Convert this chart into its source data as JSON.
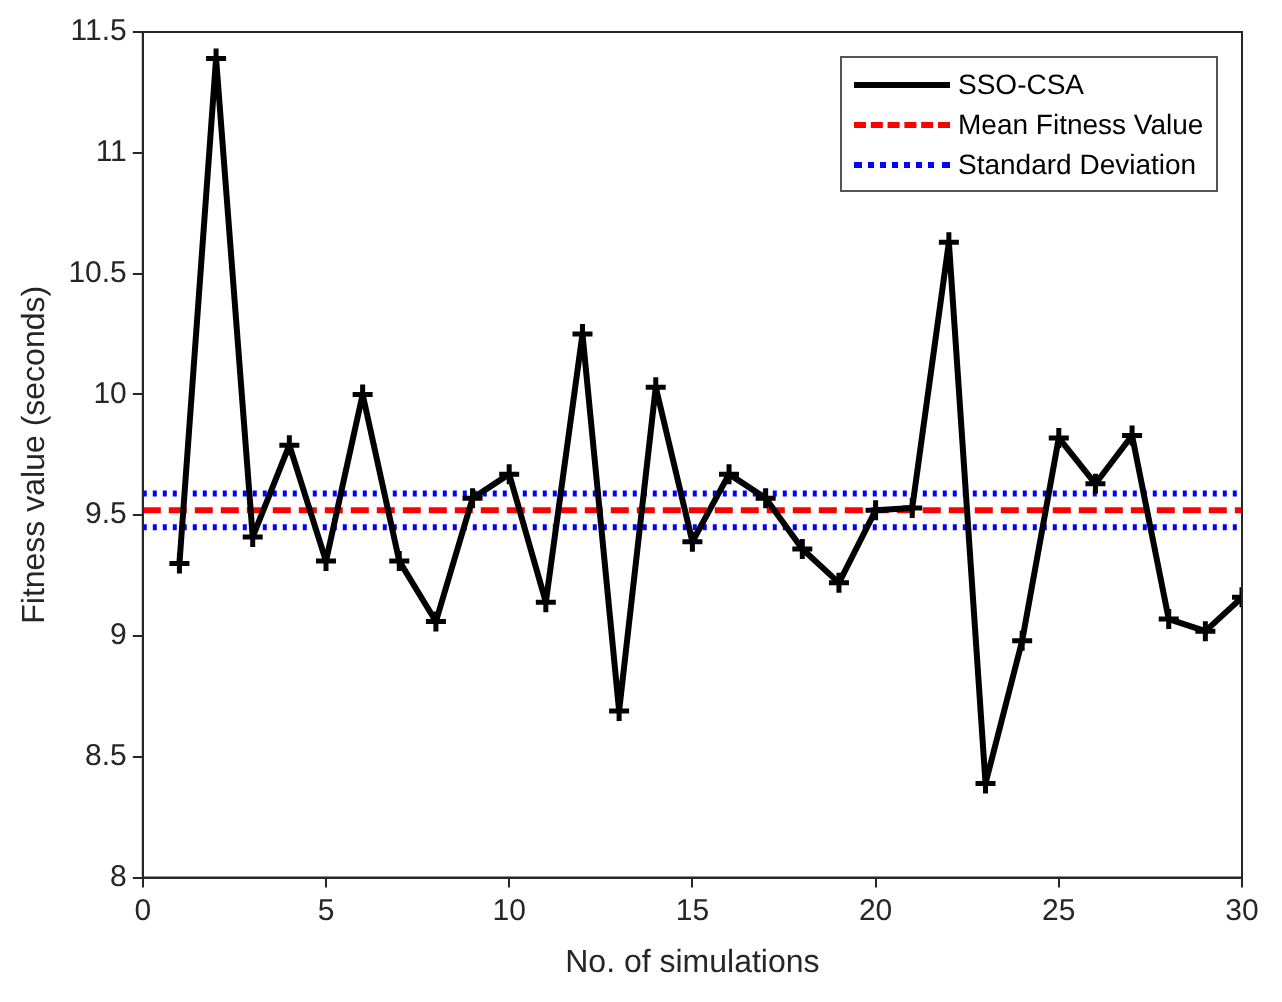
{
  "chart_data": {
    "type": "line",
    "xlabel": "No. of simulations",
    "ylabel": "Fitness value (seconds)",
    "xlim": [
      0,
      30
    ],
    "xticks": [
      0,
      5,
      10,
      15,
      20,
      25,
      30
    ],
    "ylim": [
      8,
      11.5
    ],
    "yticks": [
      8,
      8.5,
      9,
      9.5,
      10,
      10.5,
      11,
      11.5
    ],
    "grid": false,
    "legend": "top right",
    "series": [
      {
        "name": "SSO-CSA",
        "color": "#000000",
        "marker": "cross",
        "line_style": "solid",
        "x": [
          1,
          2,
          3,
          4,
          5,
          6,
          7,
          8,
          9,
          10,
          11,
          12,
          13,
          14,
          15,
          16,
          17,
          18,
          19,
          20,
          21,
          22,
          23,
          24,
          25,
          26,
          27,
          28,
          29,
          30
        ],
        "values": [
          9.3,
          11.39,
          9.41,
          9.79,
          9.31,
          10.0,
          9.31,
          9.06,
          9.57,
          9.67,
          9.14,
          10.25,
          8.69,
          10.03,
          9.39,
          9.67,
          9.57,
          9.36,
          9.22,
          9.52,
          9.53,
          10.63,
          8.39,
          8.98,
          9.82,
          9.63,
          9.83,
          9.07,
          9.02,
          9.16
        ]
      },
      {
        "name": "Mean Fitness Value",
        "color": "#ff0000",
        "marker": "none",
        "line_style": "dashed",
        "x": [
          0,
          30
        ],
        "values": [
          9.52,
          9.52
        ]
      },
      {
        "name": "Standard Deviation",
        "color": "#0000ff",
        "marker": "none",
        "line_style": "dotted",
        "x": [
          0,
          30
        ],
        "values": [
          9.59,
          9.59
        ]
      },
      {
        "color": "#0000ff",
        "marker": "none",
        "line_style": "dotted",
        "x": [
          0,
          30
        ],
        "values": [
          9.45,
          9.45
        ]
      }
    ]
  }
}
